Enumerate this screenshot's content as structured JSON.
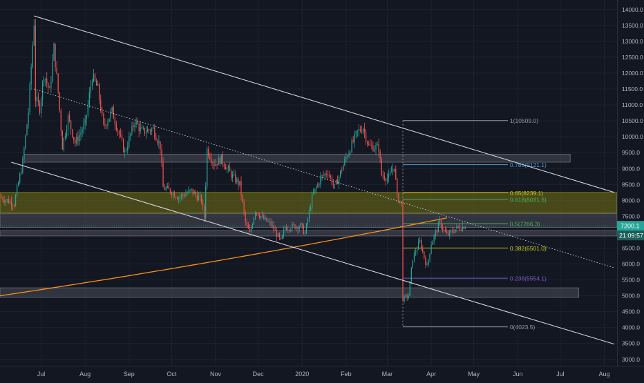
{
  "colors": {
    "background": "#131722",
    "up": "#26a69a",
    "down": "#ef5350",
    "grid": "#1e2230",
    "axis_text": "#b2b5be",
    "trendline": "#d1d4dc",
    "ma": "#f7931a",
    "zone_gray": "#4a4d57",
    "zone_olive": "#6b6b16",
    "fib_gray": "#9598a1",
    "fib_blue": "#4f9ed8",
    "fib_green": "#4caf50",
    "fib_yellow": "#c9c61f",
    "fib_purple": "#7e57c2",
    "price_tag": "#26a69a",
    "timer_tag": "#1b5e58"
  },
  "chart_data": {
    "type": "candlestick",
    "title": "",
    "xlabel": "",
    "ylabel": "",
    "ylim": [
      2800,
      14300
    ],
    "y_ticks": [
      3000,
      3500,
      4000,
      4500,
      5000,
      5500,
      6000,
      6500,
      7000,
      7500,
      8000,
      8500,
      9000,
      9500,
      10000,
      10500,
      11000,
      11500,
      12000,
      12500,
      13000,
      13500,
      14000
    ],
    "x_tick_labels": [
      {
        "label": "Jul",
        "date": "2019-07-01"
      },
      {
        "label": "Aug",
        "date": "2019-08-01"
      },
      {
        "label": "Sep",
        "date": "2019-09-01"
      },
      {
        "label": "Oct",
        "date": "2019-10-01"
      },
      {
        "label": "Nov",
        "date": "2019-11-01"
      },
      {
        "label": "Dec",
        "date": "2019-12-01"
      },
      {
        "label": "2020",
        "date": "2020-01-01"
      },
      {
        "label": "Feb",
        "date": "2020-02-01"
      },
      {
        "label": "Mar",
        "date": "2020-03-01"
      },
      {
        "label": "Apr",
        "date": "2020-04-01"
      },
      {
        "label": "May",
        "date": "2020-05-01"
      },
      {
        "label": "Jun",
        "date": "2020-06-01"
      },
      {
        "label": "Jul",
        "date": "2020-07-01"
      },
      {
        "label": "Aug",
        "date": "2020-08-01"
      }
    ],
    "x_range": [
      "2019-06-02",
      "2020-08-10"
    ],
    "price_path": [
      [
        "2019-06-02",
        8100
      ],
      [
        "2019-06-12",
        7900
      ],
      [
        "2019-06-18",
        9200
      ],
      [
        "2019-06-22",
        10800
      ],
      [
        "2019-06-26",
        13600
      ],
      [
        "2019-06-27",
        11200
      ],
      [
        "2019-06-30",
        10900
      ],
      [
        "2019-07-03",
        12000
      ],
      [
        "2019-07-07",
        11400
      ],
      [
        "2019-07-10",
        12800
      ],
      [
        "2019-07-13",
        11400
      ],
      [
        "2019-07-16",
        9700
      ],
      [
        "2019-07-20",
        10600
      ],
      [
        "2019-07-25",
        9800
      ],
      [
        "2019-08-01",
        10400
      ],
      [
        "2019-08-06",
        11900
      ],
      [
        "2019-08-10",
        11500
      ],
      [
        "2019-08-14",
        10300
      ],
      [
        "2019-08-20",
        10800
      ],
      [
        "2019-08-29",
        9500
      ],
      [
        "2019-09-05",
        10500
      ],
      [
        "2019-09-10",
        10150
      ],
      [
        "2019-09-18",
        10250
      ],
      [
        "2019-09-23",
        9700
      ],
      [
        "2019-09-25",
        8400
      ],
      [
        "2019-09-30",
        8300
      ],
      [
        "2019-10-06",
        8100
      ],
      [
        "2019-10-15",
        8300
      ],
      [
        "2019-10-22",
        8000
      ],
      [
        "2019-10-24",
        7450
      ],
      [
        "2019-10-26",
        9600
      ],
      [
        "2019-10-31",
        9150
      ],
      [
        "2019-11-05",
        9300
      ],
      [
        "2019-11-12",
        8800
      ],
      [
        "2019-11-18",
        8500
      ],
      [
        "2019-11-22",
        7300
      ],
      [
        "2019-11-25",
        6950
      ],
      [
        "2019-11-29",
        7700
      ],
      [
        "2019-12-05",
        7400
      ],
      [
        "2019-12-10",
        7250
      ],
      [
        "2019-12-17",
        6700
      ],
      [
        "2019-12-20",
        7150
      ],
      [
        "2019-12-31",
        7200
      ],
      [
        "2020-01-03",
        6950
      ],
      [
        "2020-01-08",
        8100
      ],
      [
        "2020-01-14",
        8700
      ],
      [
        "2020-01-19",
        8900
      ],
      [
        "2020-01-24",
        8400
      ],
      [
        "2020-02-01",
        9350
      ],
      [
        "2020-02-09",
        10150
      ],
      [
        "2020-02-13",
        10300
      ],
      [
        "2020-02-17",
        9700
      ],
      [
        "2020-02-24",
        9650
      ],
      [
        "2020-02-26",
        8800
      ],
      [
        "2020-03-02",
        8700
      ],
      [
        "2020-03-06",
        9100
      ],
      [
        "2020-03-08",
        8100
      ],
      [
        "2020-03-11",
        7900
      ],
      [
        "2020-03-12",
        4900
      ],
      [
        "2020-03-16",
        5000
      ],
      [
        "2020-03-19",
        6200
      ],
      [
        "2020-03-24",
        6700
      ],
      [
        "2020-03-29",
        5900
      ],
      [
        "2020-04-01",
        6650
      ],
      [
        "2020-04-07",
        7300
      ],
      [
        "2020-04-12",
        6900
      ],
      [
        "2020-04-18",
        7100
      ],
      [
        "2020-04-22",
        7150
      ],
      [
        "2020-04-25",
        7200
      ]
    ],
    "last_price": "7200.1",
    "countdown": "21:09:57",
    "trendlines": [
      {
        "name": "upper-channel",
        "p1": [
          "2019-06-26",
          13800
        ],
        "p2": [
          "2020-08-08",
          8250
        ],
        "style": "solid"
      },
      {
        "name": "lower-channel",
        "p1": [
          "2019-06-10",
          9200
        ],
        "p2": [
          "2020-08-08",
          3480
        ],
        "style": "solid"
      },
      {
        "name": "mid-channel",
        "p1": [
          "2019-06-26",
          11500
        ],
        "p2": [
          "2020-08-08",
          5880
        ],
        "style": "dotted"
      }
    ],
    "moving_average": {
      "name": "200-day-ma",
      "start": [
        "2019-06-02",
        5000
      ],
      "end": [
        "2020-04-12",
        7450
      ]
    },
    "zones": [
      {
        "name": "gray-zone-9200",
        "x1": "2019-06-19",
        "x2": "2020-07-08",
        "y1": 9200,
        "y2": 9450,
        "color": "zone_gray"
      },
      {
        "name": "olive-zone-7900",
        "x1": "2019-06-02",
        "x2": "2020-08-10",
        "y1": 7600,
        "y2": 8250,
        "color": "zone_olive"
      },
      {
        "name": "gray-zone-7200",
        "x1": "2019-06-02",
        "x2": "2020-08-10",
        "y1": 7150,
        "y2": 7580,
        "color": "zone_gray"
      },
      {
        "name": "gray-zone-6900",
        "x1": "2019-06-02",
        "x2": "2020-08-10",
        "y1": 6880,
        "y2": 7050,
        "color": "zone_gray"
      },
      {
        "name": "gray-zone-5050",
        "x1": "2019-06-02",
        "x2": "2020-07-14",
        "y1": 4950,
        "y2": 5250,
        "color": "zone_gray"
      }
    ],
    "fib_retracement": {
      "x1": "2020-03-12",
      "x2": "2020-05-25",
      "levels": [
        {
          "ratio": 1,
          "value": 10509.0,
          "label": "1(10509.0)",
          "color": "fib_gray"
        },
        {
          "ratio": 0.786,
          "value": 9121.1,
          "label": "0.786(9121.1)",
          "color": "fib_blue"
        },
        {
          "ratio": 0.65,
          "value": 8239.1,
          "label": "0.65(8239.1)",
          "color": "fib_yellow"
        },
        {
          "ratio": 0.618,
          "value": 8031.6,
          "label": "0.618(8031.6)",
          "color": "fib_green"
        },
        {
          "ratio": 0.5,
          "value": 7266.3,
          "label": "0.5(7266.3)",
          "color": "fib_green"
        },
        {
          "ratio": 0.382,
          "value": 6501.0,
          "label": "0.382(6501.0)",
          "color": "fib_yellow"
        },
        {
          "ratio": 0.236,
          "value": 5554.1,
          "label": "0.236(5554.1)",
          "color": "fib_purple"
        },
        {
          "ratio": 0,
          "value": 4023.5,
          "label": "0(4023.5)",
          "color": "fib_gray"
        }
      ]
    }
  }
}
